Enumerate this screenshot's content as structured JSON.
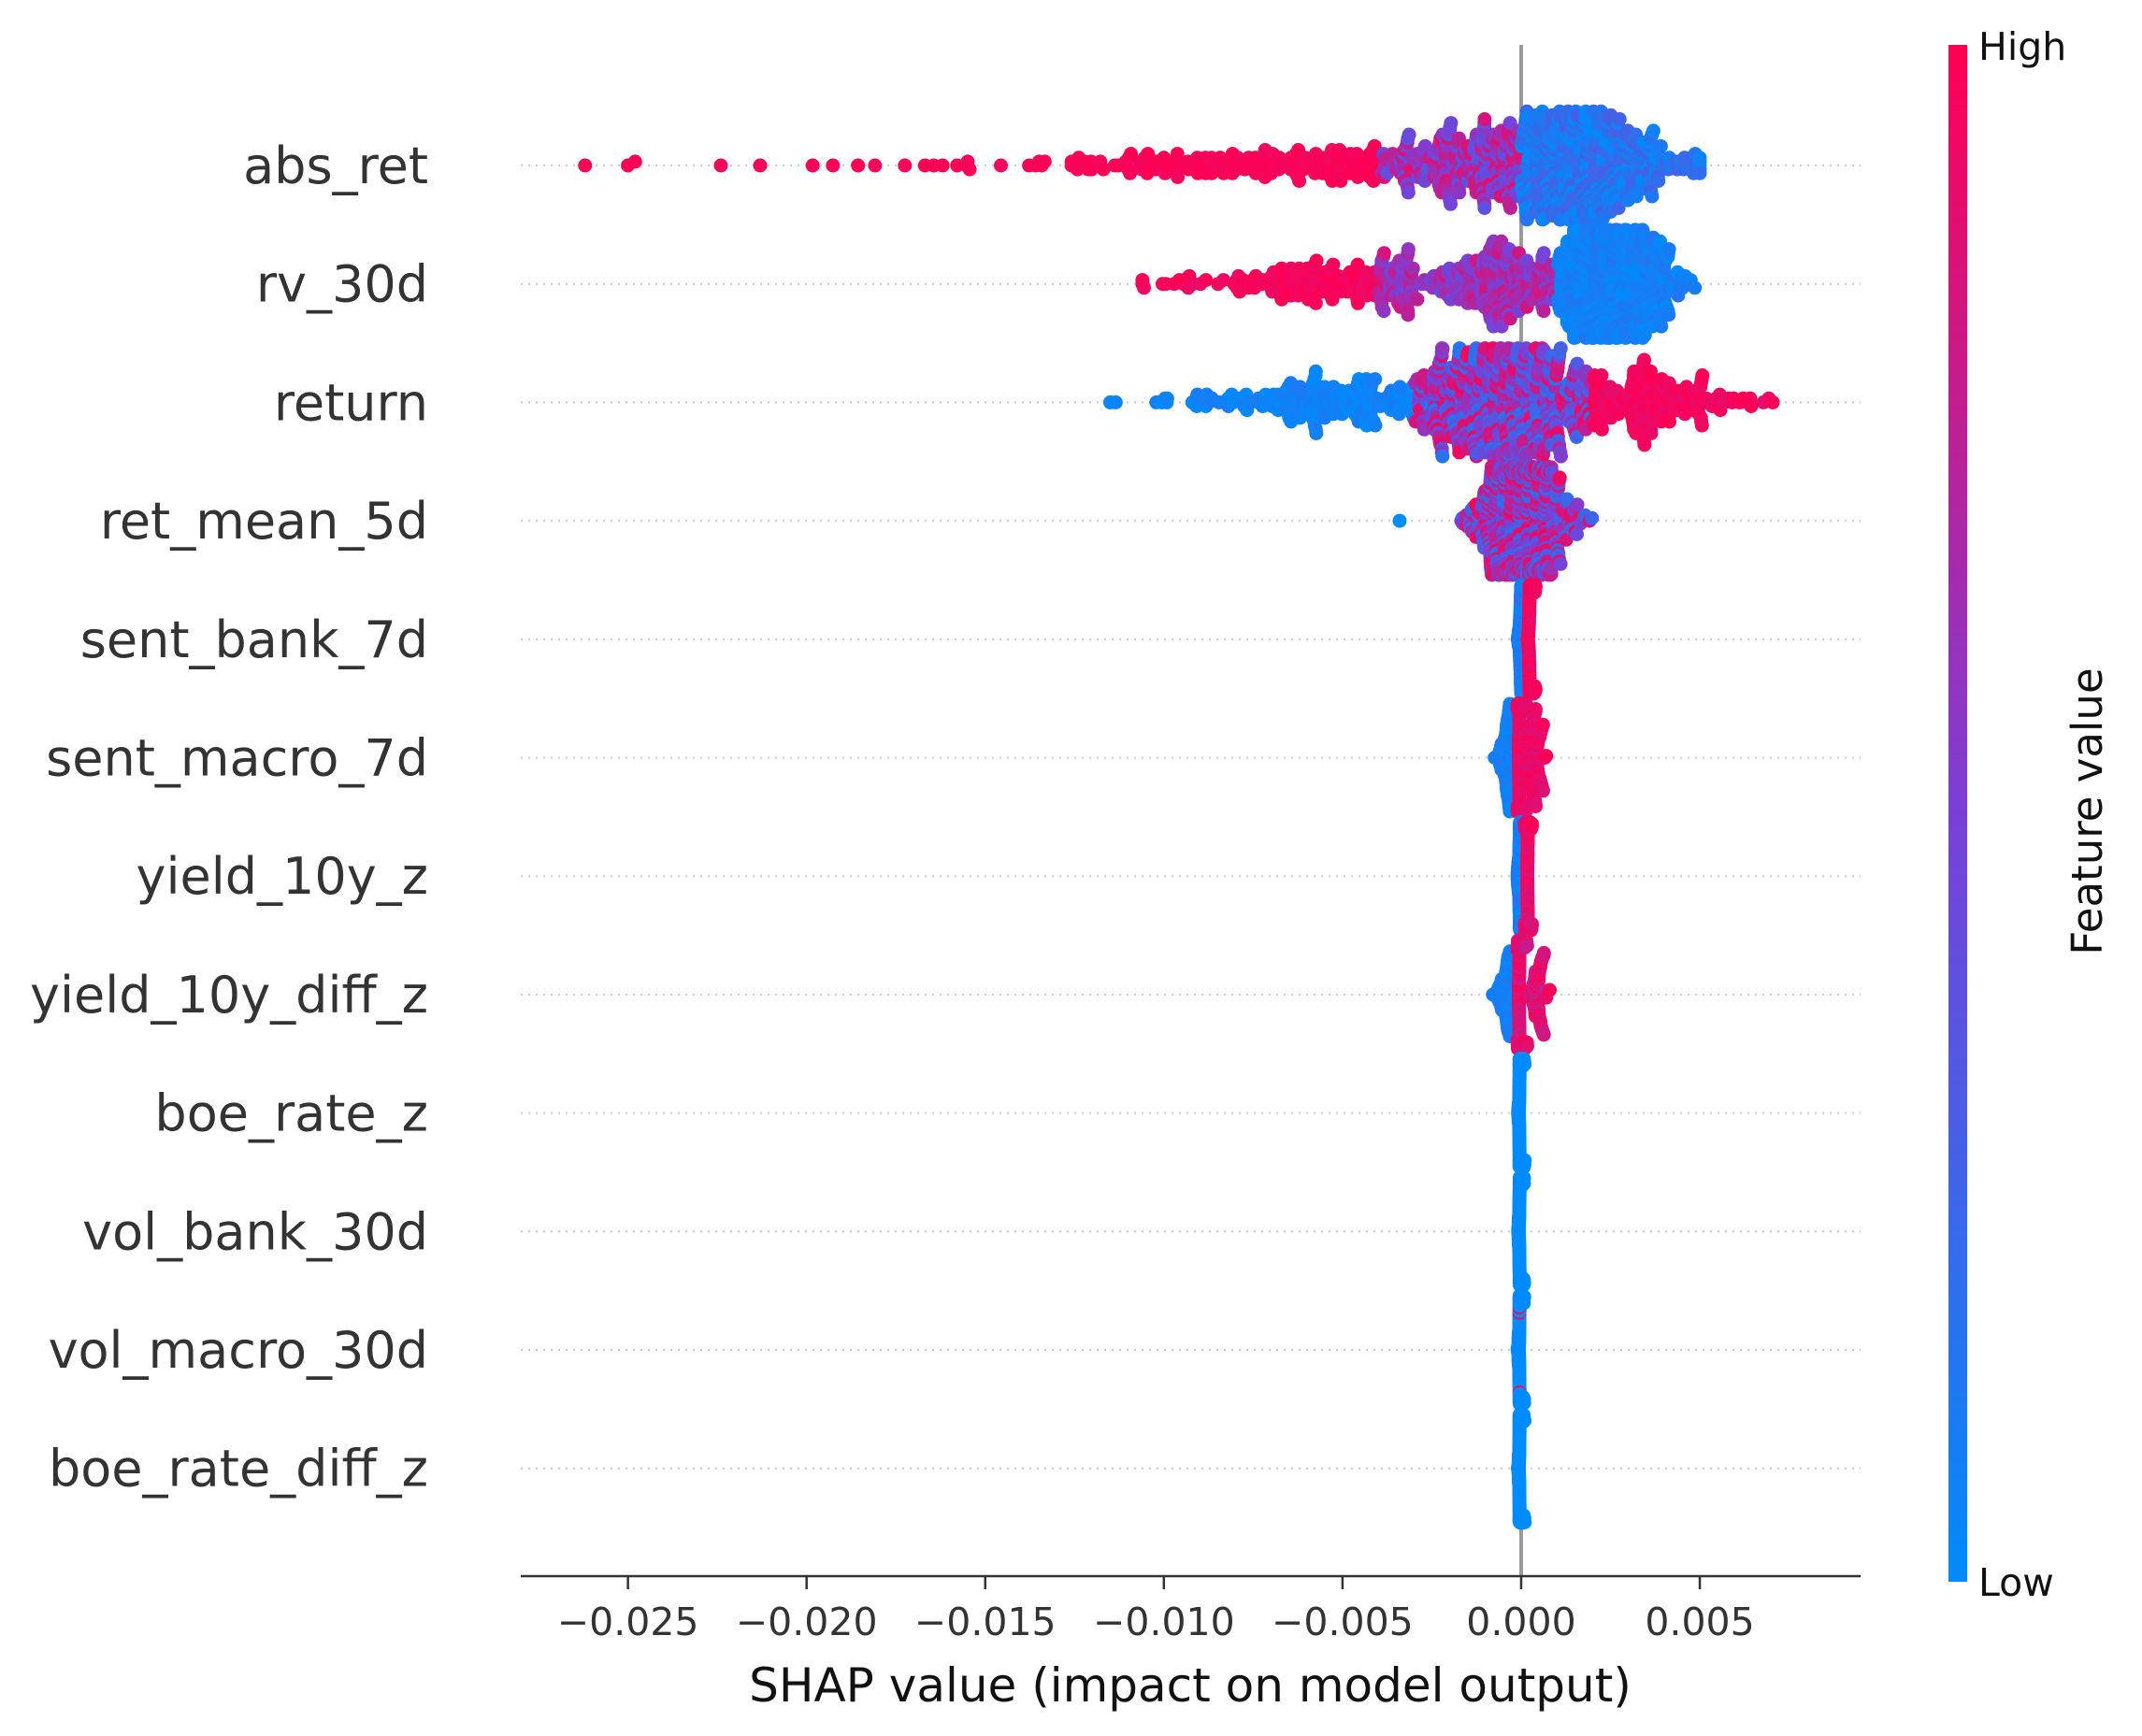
{
  "chart_data": {
    "type": "scatter",
    "subtype": "shap-beeswarm",
    "title": "",
    "xlabel": "SHAP value (impact on model output)",
    "ylabel": "",
    "xlim": [
      -0.028,
      0.0095
    ],
    "xticks": [
      -0.025,
      -0.02,
      -0.015,
      -0.01,
      -0.005,
      0.0,
      0.005
    ],
    "xtick_labels": [
      "−0.025",
      "−0.020",
      "−0.015",
      "−0.010",
      "−0.005",
      "0.000",
      "0.005"
    ],
    "zero_line": 0.0,
    "grid": false,
    "colorbar": {
      "title": "Feature value",
      "high_label": "High",
      "low_label": "Low",
      "high_color": "#ff0052",
      "mid_color": "#7a40d6",
      "low_color": "#008bfb",
      "placement": "right"
    },
    "features": [
      {
        "name": "abs_ret",
        "min": -0.0262,
        "max": 0.005,
        "spread": 1.0,
        "outliers": [
          -0.0262,
          -0.025,
          -0.0248,
          -0.0224,
          -0.0213
        ]
      },
      {
        "name": "rv_30d",
        "min": -0.0106,
        "max": 0.005,
        "spread": 1.0,
        "outliers": []
      },
      {
        "name": "return",
        "min": -0.0115,
        "max": 0.008,
        "spread": 1.0,
        "outliers": []
      },
      {
        "name": "ret_mean_5d",
        "min": -0.0034,
        "max": 0.0031,
        "spread": 0.7,
        "outliers": [
          -0.0034
        ]
      },
      {
        "name": "sent_bank_7d",
        "min": -0.0001,
        "max": 0.0004,
        "spread": 0.55,
        "outliers": []
      },
      {
        "name": "sent_macro_7d",
        "min": -0.0009,
        "max": 0.0007,
        "spread": 0.45,
        "outliers": []
      },
      {
        "name": "yield_10y_z",
        "min": -0.0001,
        "max": 0.0003,
        "spread": 0.42,
        "outliers": []
      },
      {
        "name": "yield_10y_diff_z",
        "min": -0.0008,
        "max": 0.0008,
        "spread": 0.4,
        "outliers": []
      },
      {
        "name": "boe_rate_z",
        "min": -0.0001,
        "max": 0.0001,
        "spread": 0.48,
        "outliers": []
      },
      {
        "name": "vol_bank_30d",
        "min": -0.0001,
        "max": 0.0001,
        "spread": 0.46,
        "outliers": []
      },
      {
        "name": "vol_macro_30d",
        "min": -0.0001,
        "max": 0.0001,
        "spread": 0.46,
        "outliers": []
      },
      {
        "name": "boe_rate_diff_z",
        "min": -0.0001,
        "max": 0.0001,
        "spread": 0.46,
        "outliers": []
      }
    ]
  }
}
